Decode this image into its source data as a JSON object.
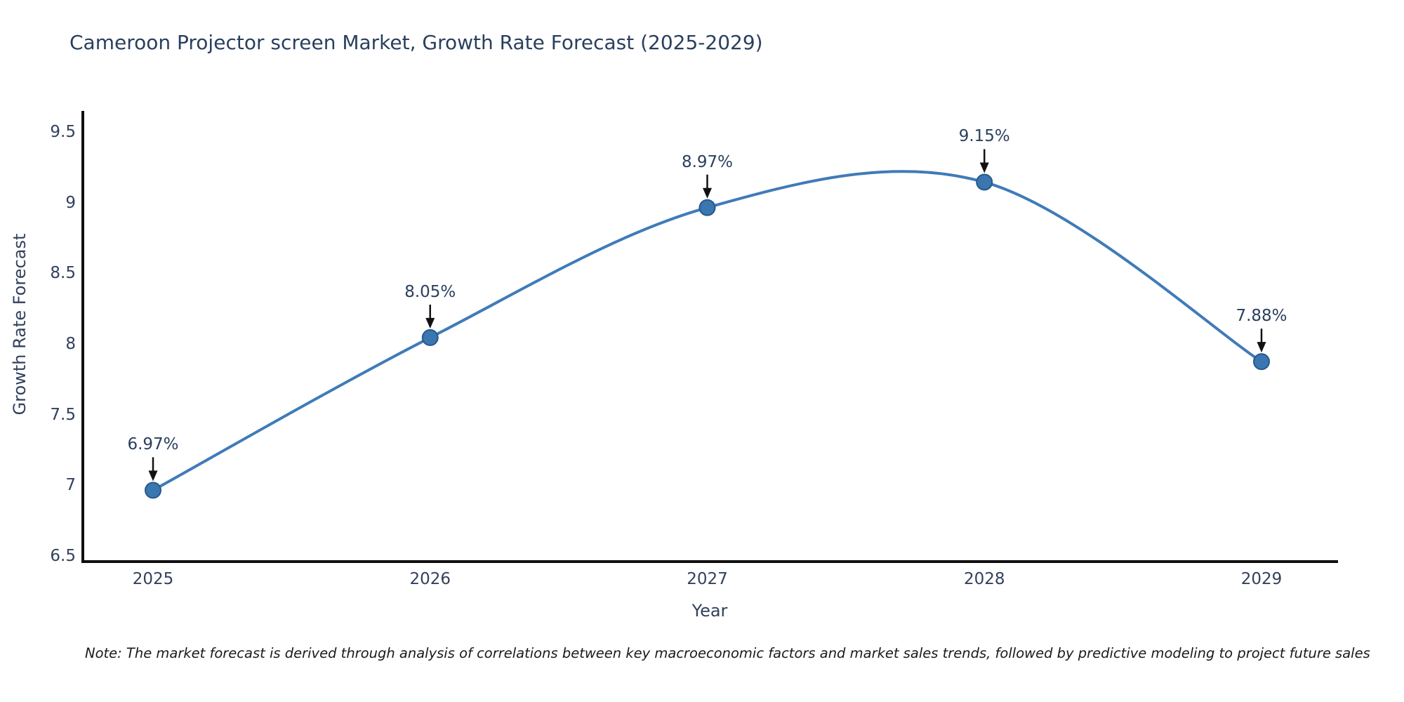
{
  "chart_data": {
    "type": "line",
    "title": "Cameroon Projector screen Market, Growth Rate Forecast (2025-2029)",
    "xlabel": "Year",
    "ylabel": "Growth Rate Forecast",
    "x": [
      2025,
      2026,
      2027,
      2028,
      2029
    ],
    "series": [
      {
        "name": "Growth Rate Forecast",
        "values": [
          6.97,
          8.05,
          8.97,
          9.15,
          7.88
        ]
      }
    ],
    "point_labels": [
      "6.97%",
      "8.05%",
      "8.97%",
      "9.15%",
      "7.88%"
    ],
    "yticks": [
      6.5,
      7,
      7.5,
      8,
      8.5,
      9,
      9.5
    ],
    "ylim": [
      6.45,
      9.65
    ],
    "line_shape": "spline",
    "grid": false,
    "legend_position": "none",
    "colors": {
      "line": "#3f7bb8",
      "marker_fill": "#3a76b0",
      "marker_stroke": "#27598c",
      "axis": "#0f0f0f",
      "arrow": "#111111",
      "title_text": "#2a3f5f",
      "tick_text": "#33415c",
      "note_text": "#1a1a1a"
    },
    "note": "Note: The market forecast is derived through analysis of correlations between key macroeconomic factors and market sales trends, followed by predictive modeling to project future sales"
  }
}
